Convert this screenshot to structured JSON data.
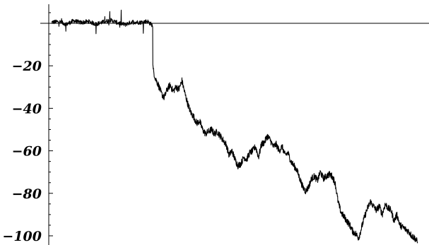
{
  "chart_data": {
    "type": "line",
    "title": "",
    "xlabel": "",
    "ylabel": "",
    "xlim": [
      0,
      1
    ],
    "ylim": [
      -104,
      10
    ],
    "grid": false,
    "x_ticks_shown": false,
    "y_ticks": [
      {
        "value": -20,
        "label": "−20"
      },
      {
        "value": -40,
        "label": "−40"
      },
      {
        "value": -60,
        "label": "−60"
      },
      {
        "value": -80,
        "label": "−80"
      },
      {
        "value": -100,
        "label": "−100"
      }
    ],
    "series": [
      {
        "color": "#000000",
        "x": [
          0.0,
          0.02,
          0.04,
          0.06,
          0.08,
          0.1,
          0.12,
          0.14,
          0.16,
          0.18,
          0.2,
          0.22,
          0.24,
          0.26,
          0.2745,
          0.2749,
          0.276,
          0.282,
          0.29,
          0.298,
          0.306,
          0.314,
          0.322,
          0.33,
          0.338,
          0.346,
          0.354,
          0.362,
          0.37,
          0.378,
          0.386,
          0.394,
          0.402,
          0.41,
          0.418,
          0.426,
          0.434,
          0.442,
          0.45,
          0.458,
          0.466,
          0.474,
          0.482,
          0.49,
          0.498,
          0.506,
          0.514,
          0.522,
          0.53,
          0.538,
          0.546,
          0.554,
          0.562,
          0.57,
          0.578,
          0.586,
          0.594,
          0.602,
          0.61,
          0.618,
          0.626,
          0.634,
          0.642,
          0.65,
          0.658,
          0.666,
          0.674,
          0.682,
          0.69,
          0.698,
          0.706,
          0.714,
          0.722,
          0.73,
          0.738,
          0.746,
          0.754,
          0.762,
          0.77,
          0.778,
          0.786,
          0.794,
          0.802,
          0.81,
          0.818,
          0.826,
          0.834,
          0.842,
          0.85,
          0.858,
          0.866,
          0.874,
          0.882,
          0.89,
          0.898,
          0.906,
          0.914,
          0.922,
          0.93,
          0.938,
          0.946,
          0.954,
          0.962,
          0.97,
          0.978,
          0.986,
          0.994
        ],
        "y": [
          0.5,
          0.8,
          -0.5,
          1.2,
          0.3,
          0.9,
          -0.4,
          0.6,
          1.5,
          0.2,
          -0.6,
          0.7,
          0.4,
          1.0,
          -1.0,
          -20,
          -22,
          -26,
          -29,
          -33,
          -35,
          -31,
          -29,
          -32,
          -30,
          -31,
          -27,
          -33,
          -38,
          -42,
          -44,
          -47,
          -46,
          -50,
          -52,
          -51,
          -50,
          -52,
          -51,
          -53,
          -55,
          -57,
          -62,
          -60,
          -64,
          -67,
          -66,
          -63,
          -64,
          -61,
          -60,
          -58,
          -63,
          -57,
          -56,
          -53,
          -55,
          -58,
          -57,
          -60,
          -58,
          -62,
          -61,
          -65,
          -67,
          -69,
          -73,
          -77,
          -79,
          -77,
          -73,
          -72,
          -74,
          -70,
          -73,
          -72,
          -71,
          -72,
          -75,
          -84,
          -89,
          -91,
          -93,
          -95,
          -98,
          -99,
          -101,
          -96,
          -91,
          -87,
          -84,
          -86,
          -88,
          -86,
          -90,
          -85,
          -87,
          -88,
          -93,
          -90,
          -95,
          -96,
          -97,
          -98,
          -100,
          -101,
          -103
        ]
      }
    ]
  }
}
